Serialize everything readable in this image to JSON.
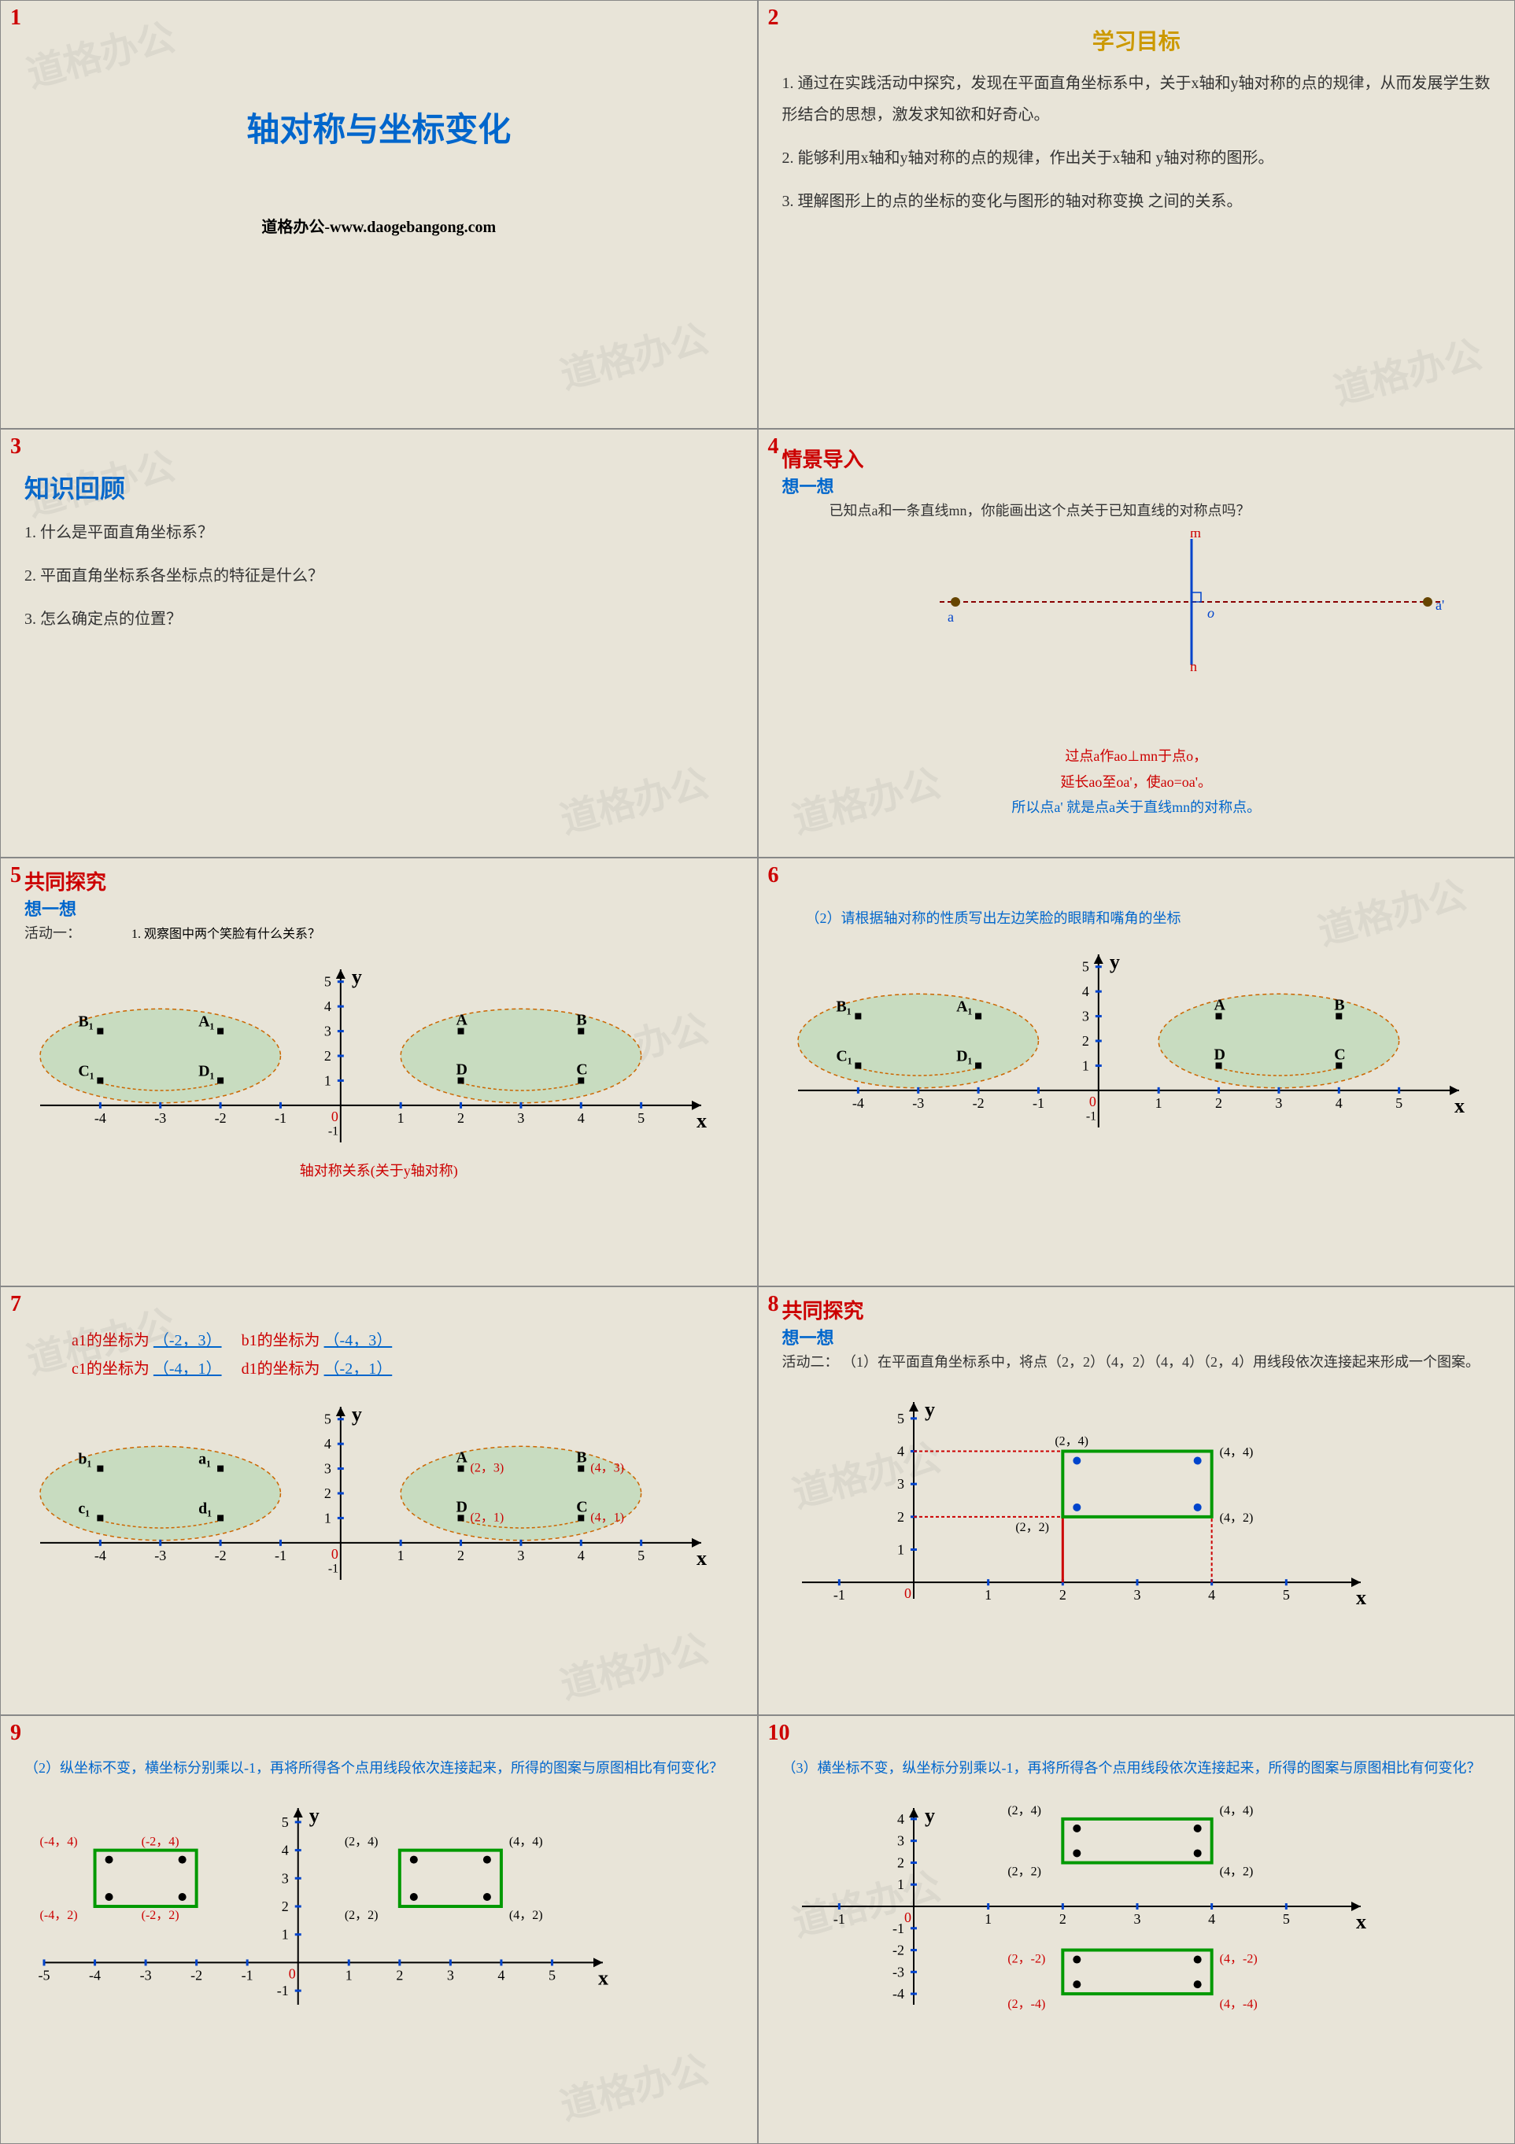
{
  "watermark": "道格办公",
  "slide1": {
    "num": "1",
    "title": "轴对称与坐标变化",
    "footer": "道格办公-www.daogebangong.com"
  },
  "slide2": {
    "num": "2",
    "heading": "学习目标",
    "p1": "1. 通过在实践活动中探究，发现在平面直角坐标系中，关于x轴和y轴对称的点的规律，从而发展学生数形结合的思想，激发求知欲和好奇心。",
    "p2": "2. 能够利用x轴和y轴对称的点的规律，作出关于x轴和 y轴对称的图形。",
    "p3": "3. 理解图形上的点的坐标的变化与图形的轴对称变换 之间的关系。"
  },
  "slide3": {
    "num": "3",
    "heading": "知识回顾",
    "q1": "1. 什么是平面直角坐标系？",
    "q2": "2. 平面直角坐标系各坐标点的特征是什么？",
    "q3": "3. 怎么确定点的位置？"
  },
  "slide4": {
    "num": "4",
    "heading": "情景导入",
    "sub": "想一想",
    "q": "已知点a和一条直线mn，你能画出这个点关于已知直线的对称点吗？",
    "ans1": "过点a作ao⊥mn于点o，",
    "ans2": "延长ao至oa'，使ao=oa'。",
    "ans3": "所以点a' 就是点a关于直线mn的对称点。",
    "labels": {
      "m": "m",
      "n": "n",
      "a": "a",
      "ap": "a'",
      "o": "o"
    },
    "colors": {
      "line_mn": "#0044cc",
      "dash": "#880000",
      "point": "#664400"
    }
  },
  "slide5": {
    "num": "5",
    "heading": "共同探究",
    "sub": "想一想",
    "act": "活动一：",
    "q": "1. 观察图中两个笑脸有什么关系？",
    "caption": "轴对称关系(关于y轴对称)",
    "chart": {
      "xlim": [
        -5,
        6
      ],
      "ylim": [
        -1.5,
        5.5
      ],
      "xticks": [
        -4,
        -3,
        -2,
        -1,
        0,
        1,
        2,
        3,
        4,
        5
      ],
      "yticks": [
        1,
        2,
        3,
        4,
        5
      ],
      "pts_left": {
        "B1": [
          -4,
          3
        ],
        "A1": [
          -2,
          3
        ],
        "C1": [
          -4,
          1
        ],
        "D1": [
          -2,
          1
        ]
      },
      "pts_right": {
        "A": [
          2,
          3
        ],
        "B": [
          4,
          3
        ],
        "D": [
          2,
          1
        ],
        "C": [
          4,
          1
        ]
      },
      "face_color": "#c8dcc0",
      "axis_color": "#0044cc",
      "tick_color": "#0044cc",
      "dash_color": "#cc6600"
    }
  },
  "slide6": {
    "num": "6",
    "q": "（2）请根据轴对称的性质写出左边笑脸的眼睛和嘴角的坐标"
  },
  "slide7": {
    "num": "7",
    "c_a1_lbl": "a1的坐标为",
    "c_a1": "（-2，3）",
    "c_b1_lbl": "b1的坐标为",
    "c_b1": "（-4，3）",
    "c_c1_lbl": "c1的坐标为",
    "c_c1": "（-4，1）",
    "c_d1_lbl": "d1的坐标为",
    "c_d1": "（-2，1）",
    "chart": {
      "pts_left": {
        "b1": [
          -4,
          3
        ],
        "a1": [
          -2,
          3
        ],
        "c1": [
          -4,
          1
        ],
        "d1": [
          -2,
          1
        ]
      },
      "pts_right": {
        "A": [
          2,
          3
        ],
        "B": [
          4,
          3
        ],
        "D": [
          2,
          1
        ],
        "C": [
          4,
          1
        ]
      },
      "coord_labels": {
        "A": "(2，3)",
        "B": "(4，3)",
        "D": "(2，1)",
        "C": "(4，1)"
      }
    }
  },
  "slide8": {
    "num": "8",
    "heading": "共同探究",
    "sub": "想一想",
    "act": "活动二：",
    "q": "（1）在平面直角坐标系中，将点（2，2）（4，2）（4，4）（2，4）用线段依次连接起来形成一个图案。",
    "chart": {
      "xlim": [
        -1.5,
        6
      ],
      "ylim": [
        -0.5,
        5.5
      ],
      "rect_pts": [
        [
          2,
          2
        ],
        [
          4,
          2
        ],
        [
          4,
          4
        ],
        [
          2,
          4
        ]
      ],
      "rect_color": "#009900",
      "dot_color": "#0044cc",
      "dash_color": "#cc0000",
      "labels": {
        "p22": "(2，2)",
        "p42": "(4，2)",
        "p44": "(4，4)",
        "p24": "(2，4)"
      }
    }
  },
  "slide9": {
    "num": "9",
    "q": "（2）纵坐标不变，横坐标分别乘以-1，再将所得各个点用线段依次连接起来，所得的图案与原图相比有何变化？",
    "chart": {
      "xlim": [
        -5,
        6
      ],
      "ylim": [
        -1.5,
        5.5
      ],
      "rect1": [
        [
          2,
          2
        ],
        [
          4,
          2
        ],
        [
          4,
          4
        ],
        [
          2,
          4
        ]
      ],
      "rect2": [
        [
          -2,
          2
        ],
        [
          -4,
          2
        ],
        [
          -4,
          4
        ],
        [
          -2,
          4
        ]
      ],
      "rect_color": "#009900",
      "labels_r1": {
        "p22": "(2，2)",
        "p42": "(4，2)",
        "p44": "(4，4)",
        "p24": "(2，4)"
      },
      "labels_r2": {
        "m22": "(-2，2)",
        "m42": "(-4，2)",
        "m44": "(-4，4)",
        "m24": "(-2，4)"
      }
    }
  },
  "slide10": {
    "num": "10",
    "q": "（3）横坐标不变，纵坐标分别乘以-1，再将所得各个点用线段依次连接起来，所得的图案与原图相比有何变化？",
    "chart": {
      "xlim": [
        -1.5,
        6
      ],
      "ylim": [
        -4.5,
        4.5
      ],
      "rect1": [
        [
          2,
          2
        ],
        [
          4,
          2
        ],
        [
          4,
          4
        ],
        [
          2,
          4
        ]
      ],
      "rect2": [
        [
          2,
          -2
        ],
        [
          4,
          -2
        ],
        [
          4,
          -4
        ],
        [
          2,
          -4
        ]
      ],
      "rect_color": "#009900",
      "labels_r1": {
        "p22": "(2，2)",
        "p42": "(4，2)",
        "p44": "(4，4)",
        "p24": "(2，4)"
      },
      "labels_r2": {
        "n22": "(2，-2)",
        "n42": "(4，-2)",
        "n44": "(4，-4)",
        "n24": "(2，-4)"
      }
    }
  },
  "axis_labels": {
    "x": "x",
    "y": "y",
    "zero": "0",
    "neg1": "-1"
  }
}
